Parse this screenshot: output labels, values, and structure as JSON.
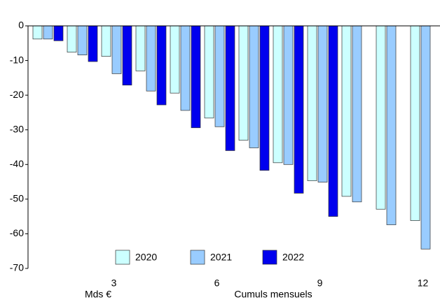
{
  "chart_data": {
    "type": "bar",
    "categories": [
      null,
      null,
      "3",
      null,
      null,
      "6",
      null,
      null,
      "9",
      null,
      null,
      "12"
    ],
    "series": [
      {
        "name": "2020",
        "color": "#ccffff",
        "values": [
          -3.8,
          -7.6,
          -8.8,
          -13,
          -19.4,
          -26.6,
          -33,
          -39.5,
          -44.7,
          -49.2,
          -52.9,
          -56.2
        ]
      },
      {
        "name": "2021",
        "color": "#99ccff",
        "values": [
          -3.8,
          -8.4,
          -13.8,
          -18.8,
          -24.4,
          -29.1,
          -35.2,
          -40,
          -45.1,
          -50.8,
          -57.4,
          -64.4
        ]
      },
      {
        "name": "2022",
        "color": "#0000ee",
        "values": [
          -4.3,
          -10.3,
          -17.1,
          -22.8,
          -29.4,
          -36,
          -41.7,
          -48.3,
          -55,
          null,
          null,
          null
        ]
      }
    ],
    "ylim": [
      -70,
      0
    ],
    "yticks": [
      0,
      -10,
      -20,
      -30,
      -40,
      -50,
      -60,
      -70
    ],
    "y_unit_label": "Mds €",
    "x_label": "Cumuls mensuels",
    "grid": false
  }
}
